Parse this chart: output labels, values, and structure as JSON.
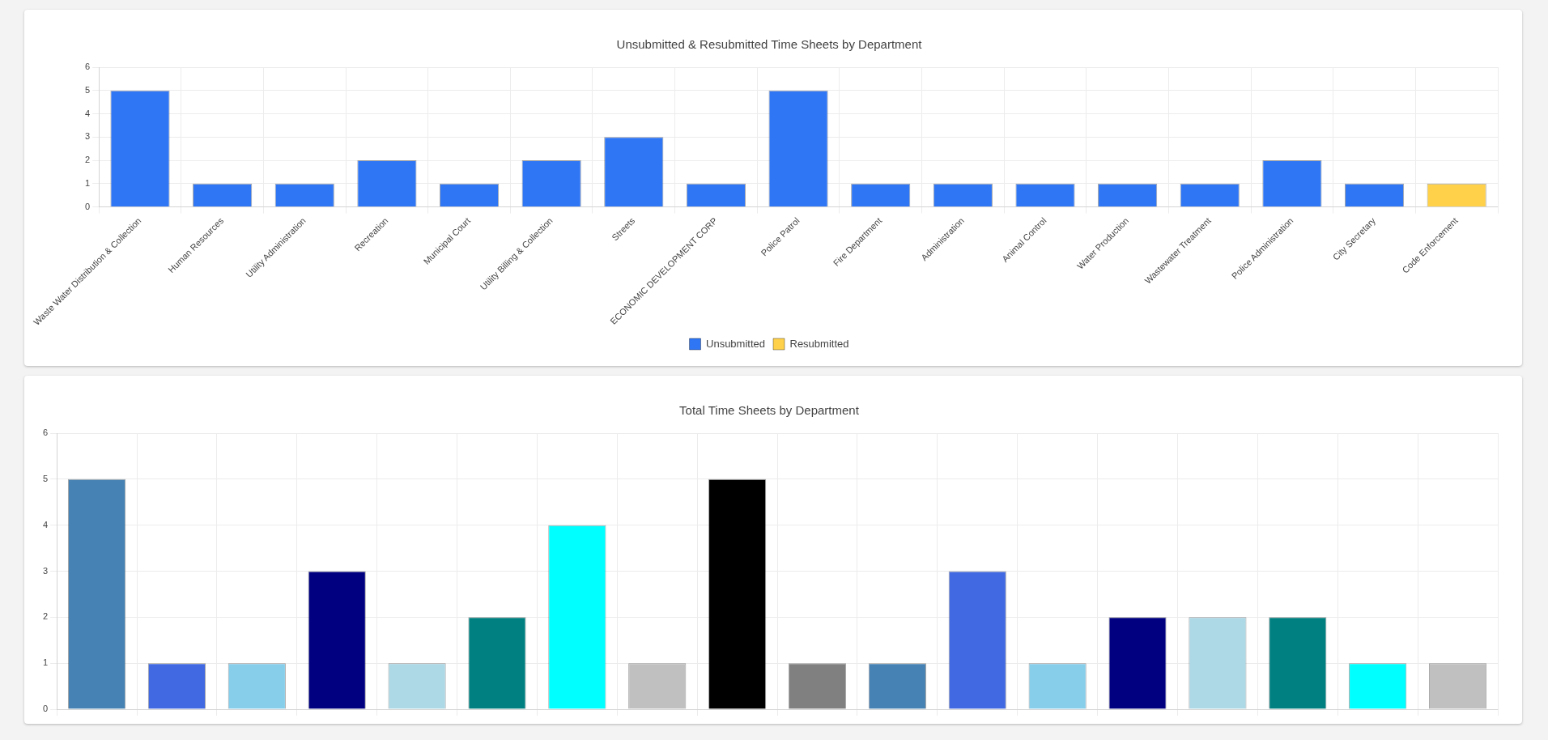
{
  "chart_data": [
    {
      "type": "bar",
      "title": "Unsubmitted & Resubmitted Time Sheets by Department",
      "categories": [
        "Waste Water Distribution & Collection",
        "Human Resources",
        "Utility Administration",
        "Recreation",
        "Municipal Court",
        "Utility Billing & Collection",
        "Streets",
        "ECONOMIC DEVELOPMENT CORP",
        "Police Patrol",
        "Fire Department",
        "Administration",
        "Animal Control",
        "Water Production",
        "Wastewater Treatment",
        "Police Administration",
        "City Secretary",
        "Code Enforcement"
      ],
      "series": [
        {
          "name": "Unsubmitted",
          "color": "#2f76f5",
          "values": [
            5,
            1,
            1,
            2,
            1,
            2,
            3,
            1,
            5,
            1,
            1,
            1,
            1,
            1,
            2,
            1,
            null
          ]
        },
        {
          "name": "Resubmitted",
          "color": "#ffd04a",
          "values": [
            null,
            null,
            null,
            null,
            null,
            null,
            null,
            null,
            null,
            null,
            null,
            null,
            null,
            null,
            null,
            null,
            1
          ]
        }
      ],
      "ylim": [
        0,
        6
      ],
      "yticks": [
        0,
        1,
        2,
        3,
        4,
        5,
        6
      ],
      "grid": true,
      "legend": "bottom"
    },
    {
      "type": "bar",
      "title": "Total Time Sheets by Department",
      "categories": [
        null,
        null,
        null,
        null,
        null,
        null,
        null,
        null,
        null,
        null,
        null,
        null,
        null,
        null,
        null,
        null,
        null,
        null
      ],
      "values": [
        5,
        1,
        1,
        3,
        1,
        2,
        4,
        1,
        5,
        1,
        1,
        3,
        1,
        2,
        2,
        2,
        1,
        1
      ],
      "colors": [
        "#4682b4",
        "#4169e1",
        "#87ceeb",
        "#000080",
        "#add8e6",
        "#008080",
        "#00ffff",
        "#c0c0c0",
        "#000000",
        "#808080",
        "#4682b4",
        "#4169e1",
        "#87ceeb",
        "#000080",
        "#add8e6",
        "#008080",
        "#00ffff",
        "#c0c0c0"
      ],
      "ylim": [
        0,
        6
      ],
      "yticks": [
        0,
        1,
        2,
        3,
        4,
        5,
        6
      ],
      "grid": true,
      "tick_labels": "y"
    }
  ]
}
